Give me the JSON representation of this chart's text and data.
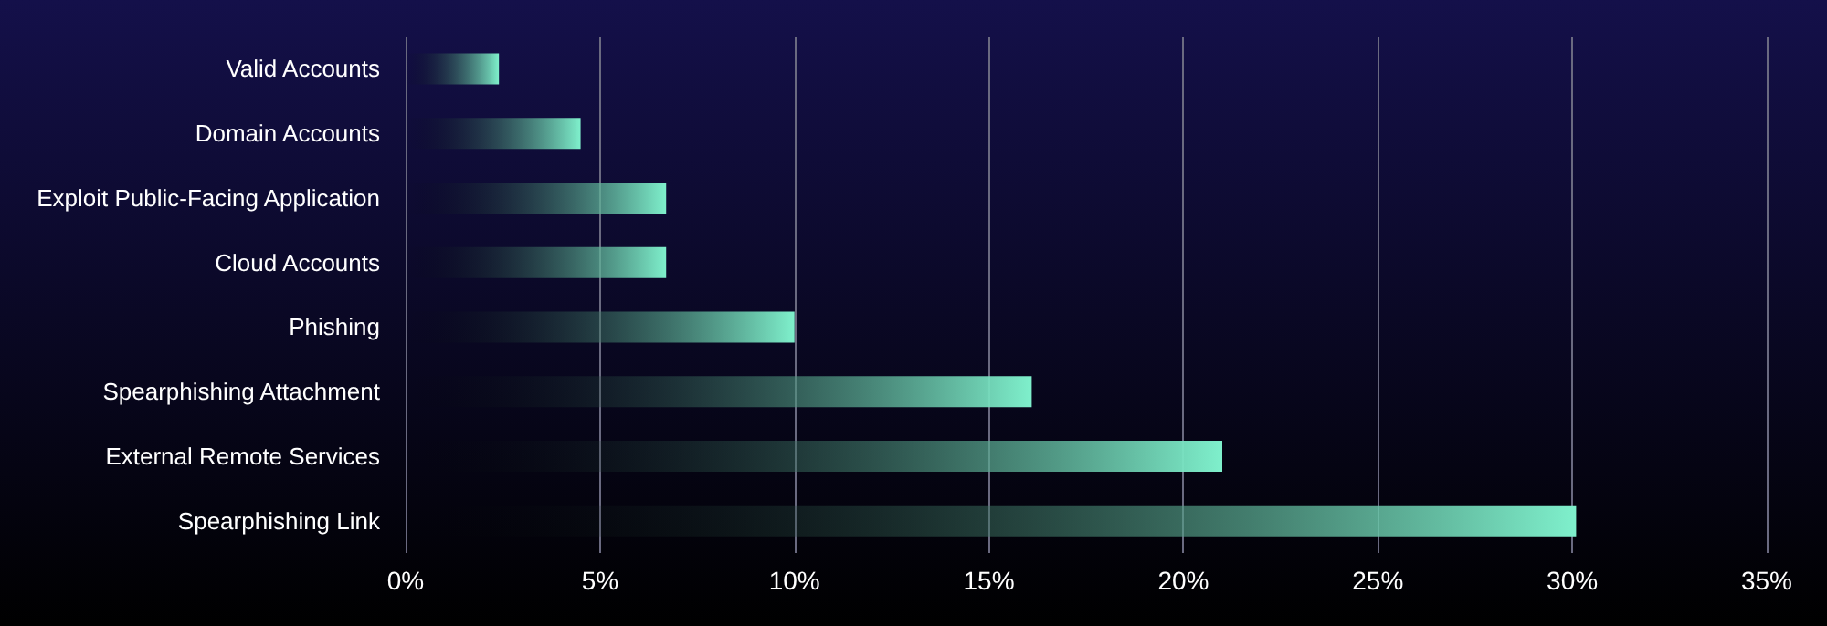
{
  "chart_data": {
    "type": "bar",
    "orientation": "horizontal",
    "categories": [
      "Valid Accounts",
      "Domain Accounts",
      "Exploit Public-Facing Application",
      "Cloud Accounts",
      "Phishing",
      "Spearphishing Attachment",
      "External Remote Services",
      "Spearphishing Link"
    ],
    "values": [
      2.4,
      4.5,
      6.7,
      6.7,
      10,
      16.1,
      21,
      30.1
    ],
    "color": "#7ff0cc",
    "xlim": [
      0,
      35
    ],
    "xticks": [
      {
        "value": 0,
        "label": "0%"
      },
      {
        "value": 5,
        "label": "5%"
      },
      {
        "value": 10,
        "label": "10%"
      },
      {
        "value": 15,
        "label": "15%"
      },
      {
        "value": 20,
        "label": "20%"
      },
      {
        "value": 25,
        "label": "25%"
      },
      {
        "value": 30,
        "label": "30%"
      },
      {
        "value": 35,
        "label": "35%"
      }
    ],
    "grid": "x"
  }
}
